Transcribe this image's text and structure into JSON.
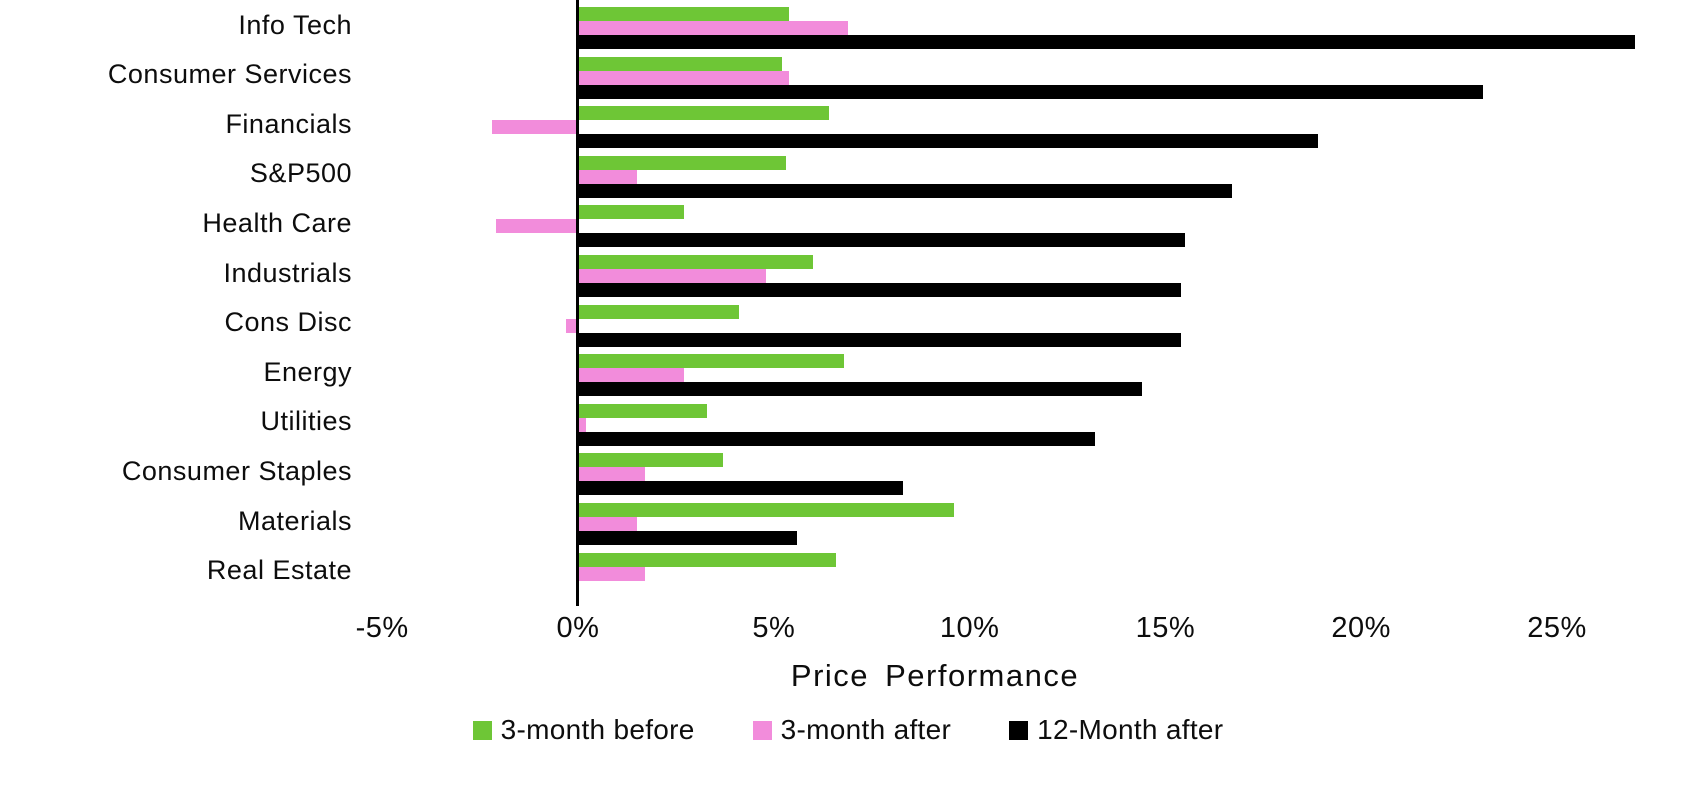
{
  "chart_data": {
    "type": "bar",
    "orientation": "horizontal",
    "title": "",
    "xlabel": "Price Performance",
    "ylabel": "",
    "categories": [
      "Info Tech",
      "Consumer Services",
      "Financials",
      "S&P500",
      "Health Care",
      "Industrials",
      "Cons Disc",
      "Energy",
      "Utilities",
      "Consumer Staples",
      "Materials",
      "Real Estate"
    ],
    "series": [
      {
        "name": "3-month before",
        "color": "#6ec636",
        "values": [
          5.4,
          5.2,
          6.4,
          5.3,
          2.7,
          6.0,
          4.1,
          6.8,
          3.3,
          3.7,
          9.6,
          6.6
        ]
      },
      {
        "name": "3-month after",
        "color": "#f28cdb",
        "values": [
          6.9,
          5.4,
          -2.2,
          1.5,
          -2.1,
          4.8,
          -0.3,
          2.7,
          0.2,
          1.7,
          1.5,
          1.7
        ]
      },
      {
        "name": "12-Month after",
        "color": "#000000",
        "values": [
          27.0,
          23.1,
          18.9,
          16.7,
          15.5,
          15.4,
          15.4,
          14.4,
          13.2,
          8.3,
          5.6,
          0
        ]
      }
    ],
    "xlim": [
      -5,
      27
    ],
    "x_ticks": [
      -5,
      0,
      5,
      10,
      15,
      20,
      25
    ],
    "x_tick_labels": [
      "-5%",
      "0%",
      "5%",
      "10%",
      "15%",
      "20%",
      "25%"
    ],
    "grid": false,
    "legend_position": "bottom",
    "zero_line": true
  },
  "colors": {
    "background": "#ffffff",
    "text": "#0d0d0d",
    "green_series": "#6ec636",
    "pink_series": "#f28cdb",
    "black_series": "#000000"
  }
}
